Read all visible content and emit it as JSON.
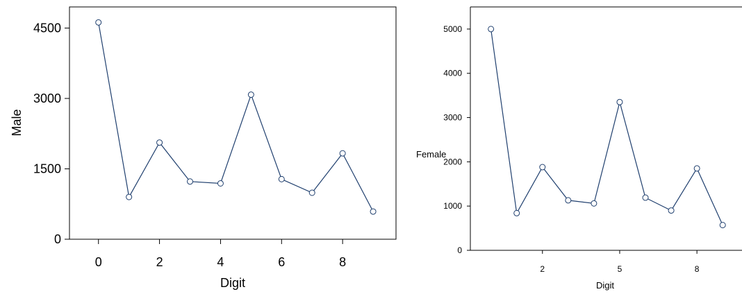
{
  "chart_data": [
    {
      "type": "line",
      "xlabel": "Digit",
      "ylabel": "Male",
      "x": [
        0,
        1,
        2,
        3,
        4,
        5,
        6,
        7,
        8,
        9
      ],
      "series": [
        {
          "values": [
            4620,
            900,
            2060,
            1230,
            1190,
            3080,
            1280,
            990,
            1830,
            590
          ]
        }
      ],
      "xticks": [
        "0",
        "2",
        "4",
        "6",
        "8"
      ],
      "yticks": [
        "0",
        "1500",
        "3000",
        "4500"
      ],
      "xlim": [
        -0.95,
        9.75
      ],
      "ylim": [
        0,
        4950
      ],
      "grid": false,
      "line_color": "#1f3f6e",
      "marker_fill": "#ffffff"
    },
    {
      "type": "line",
      "xlabel": "Digit",
      "ylabel": "Female",
      "x": [
        0,
        1,
        2,
        3,
        4,
        5,
        6,
        7,
        8,
        9
      ],
      "series": [
        {
          "values": [
            5000,
            840,
            1880,
            1130,
            1060,
            3350,
            1190,
            900,
            1850,
            570
          ]
        }
      ],
      "xticks": [
        "2",
        "5",
        "8"
      ],
      "yticks": [
        "0",
        "1000",
        "2000",
        "3000",
        "4000",
        "5000"
      ],
      "xlim": [
        -0.8,
        9.75
      ],
      "ylim": [
        0,
        5500
      ],
      "grid": false,
      "line_color": "#1f3f6e",
      "marker_fill": "#ffffff"
    }
  ]
}
